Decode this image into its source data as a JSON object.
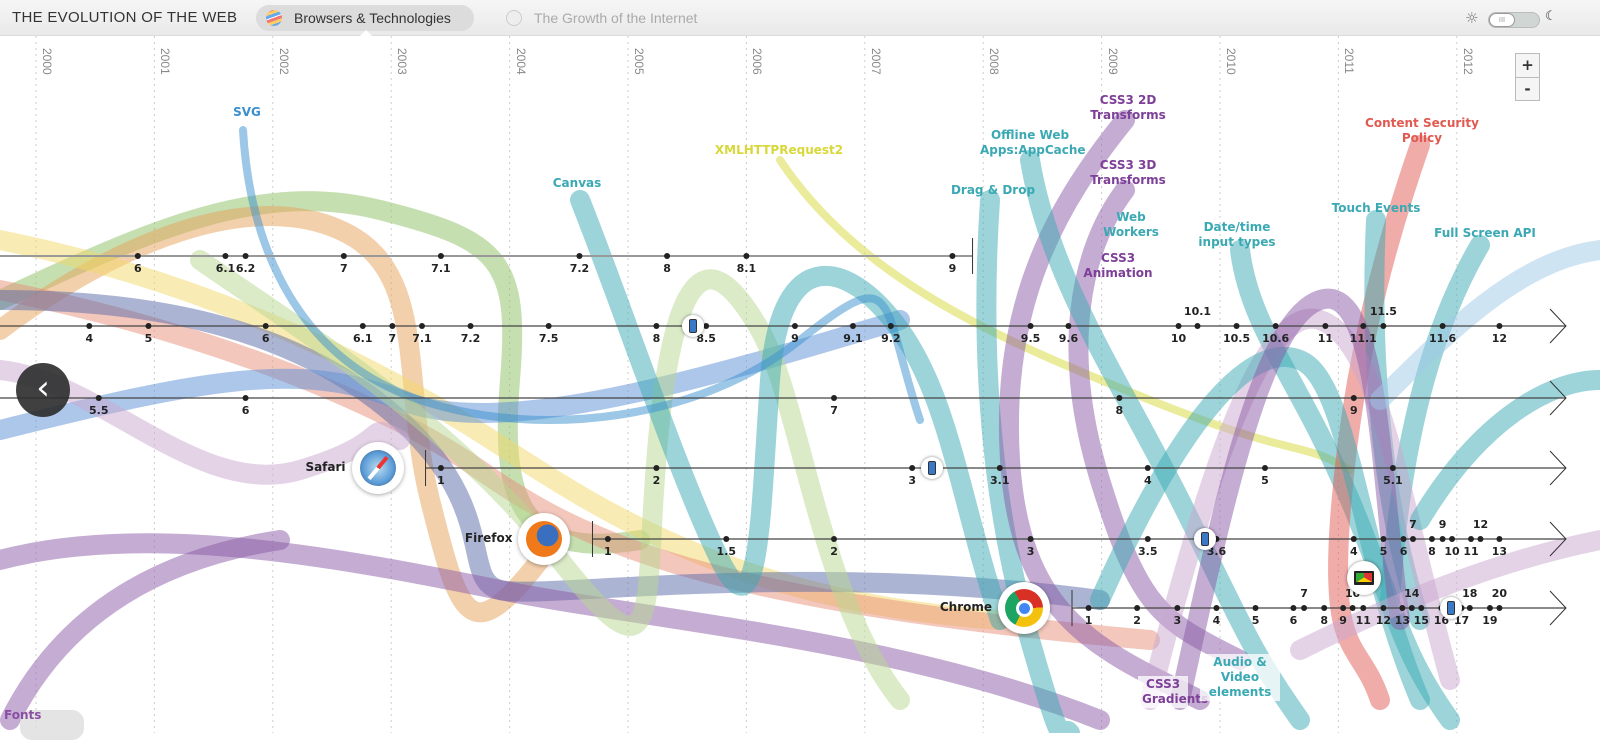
{
  "header": {
    "title": "THE EVOLUTION OF THE WEB",
    "tabs": [
      {
        "label": "Browsers & Technologies",
        "active": true
      },
      {
        "label": "The Growth of the Internet",
        "active": false
      }
    ],
    "theme_toggle": {
      "state": "light",
      "sun_icon": "sun-icon",
      "moon_icon": "moon-icon"
    }
  },
  "zoom": {
    "in": "+",
    "out": "-"
  },
  "back_button": {
    "icon": "chevron-left-icon",
    "glyph": "‹"
  },
  "years": [
    "2000",
    "2001",
    "2002",
    "2003",
    "2004",
    "2005",
    "2006",
    "2007",
    "2008",
    "2009",
    "2010",
    "2011",
    "2012"
  ],
  "browsers": [
    {
      "id": "netscape",
      "name": "",
      "ends": true,
      "versions": [
        [
          "6",
          2000.86
        ],
        [
          "6.1",
          2001.6
        ],
        [
          "6.2",
          2001.77
        ],
        [
          "7",
          2002.6
        ],
        [
          "7.1",
          2003.42
        ],
        [
          "7.2",
          2004.59
        ],
        [
          "8",
          2005.33
        ],
        [
          "8.1",
          2006.0
        ],
        [
          "9",
          2007.74
        ]
      ],
      "end": 2007.91
    },
    {
      "id": "opera",
      "name": "",
      "versions": [
        [
          "4",
          2000.45
        ],
        [
          "5",
          2000.95
        ],
        [
          "6",
          2001.94
        ],
        [
          "6.1",
          2002.76
        ],
        [
          "7",
          2003.01
        ],
        [
          "7.1",
          2003.26
        ],
        [
          "7.2",
          2003.67
        ],
        [
          "7.5",
          2004.33
        ],
        [
          "8",
          2005.24
        ],
        [
          "8.5",
          2005.66
        ],
        [
          "9",
          2006.41
        ],
        [
          "9.1",
          2006.9
        ],
        [
          "9.2",
          2007.22
        ],
        [
          "9.5",
          2008.4
        ],
        [
          "9.6",
          2008.72
        ],
        [
          "10",
          2009.65
        ],
        [
          "10.1",
          2009.81,
          "above"
        ],
        [
          "10.5",
          2010.14
        ],
        [
          "10.6",
          2010.47
        ],
        [
          "11",
          2010.89
        ],
        [
          "11.1",
          2011.21
        ],
        [
          "11.5",
          2011.38,
          "above"
        ],
        [
          "11.6",
          2011.88
        ],
        [
          "12",
          2012.36
        ]
      ],
      "devices": [
        [
          "phone-icon",
          2005.55
        ]
      ]
    },
    {
      "id": "ie",
      "name": "",
      "versions": [
        [
          "5.5",
          2000.53
        ],
        [
          "6",
          2001.77
        ],
        [
          "7",
          2006.74
        ],
        [
          "8",
          2009.15
        ],
        [
          "9",
          2011.13
        ]
      ]
    },
    {
      "id": "safari",
      "name": "Safari",
      "icon": "safari-icon",
      "start": 2003.29,
      "versions": [
        [
          "1",
          2003.42
        ],
        [
          "2",
          2005.24
        ],
        [
          "3",
          2007.4
        ],
        [
          "3.1",
          2008.14
        ],
        [
          "4",
          2009.39
        ],
        [
          "5",
          2010.38
        ],
        [
          "5.1",
          2011.46
        ]
      ],
      "devices": [
        [
          "phone-icon",
          2007.57
        ]
      ]
    },
    {
      "id": "firefox",
      "name": "Firefox",
      "icon": "firefox-icon",
      "start": 2004.7,
      "versions": [
        [
          "1",
          2004.83
        ],
        [
          "1.5",
          2005.83
        ],
        [
          "2",
          2006.74
        ],
        [
          "3",
          2008.4
        ],
        [
          "3.5",
          2009.39
        ],
        [
          "3.6",
          2009.97
        ],
        [
          "4",
          2011.13
        ],
        [
          "5",
          2011.38
        ],
        [
          "6",
          2011.55
        ],
        [
          "7",
          2011.63,
          "above"
        ],
        [
          "8",
          2011.79
        ],
        [
          "9",
          2011.88,
          "above"
        ],
        [
          "10",
          2011.96
        ],
        [
          "11",
          2012.12
        ],
        [
          "12",
          2012.2,
          "above"
        ],
        [
          "13",
          2012.36
        ]
      ],
      "devices": [
        [
          "phone-icon",
          2009.87
        ]
      ]
    },
    {
      "id": "chrome",
      "name": "Chrome",
      "icon": "chrome-icon",
      "start": 2008.75,
      "versions": [
        [
          "1",
          2008.89
        ],
        [
          "2",
          2009.3
        ],
        [
          "3",
          2009.64
        ],
        [
          "4",
          2009.97
        ],
        [
          "5",
          2010.3
        ],
        [
          "6",
          2010.62
        ],
        [
          "7",
          2010.71,
          "above"
        ],
        [
          "8",
          2010.88
        ],
        [
          "9",
          2011.04
        ],
        [
          "10",
          2011.12,
          "above"
        ],
        [
          "11",
          2011.21
        ],
        [
          "12",
          2011.38
        ],
        [
          "13",
          2011.54
        ],
        [
          "14",
          2011.62,
          "above"
        ],
        [
          "15",
          2011.7
        ],
        [
          "16",
          2011.87
        ],
        [
          "17",
          2012.04
        ],
        [
          "18",
          2012.11,
          "above"
        ],
        [
          "19",
          2012.28
        ],
        [
          "20",
          2012.36,
          "above"
        ]
      ],
      "devices": [
        [
          "phone-icon",
          2011.95
        ],
        [
          "laptop-icon",
          2011.22
        ]
      ]
    }
  ],
  "technologies": [
    {
      "label": "SVG",
      "color": "#3a8fce"
    },
    {
      "label": "Canvas",
      "color": "#3aa9b3"
    },
    {
      "label": "XMLHTTPRequest2",
      "color": "#d8d83a"
    },
    {
      "label": "Drag & Drop",
      "color": "#3aa9b3"
    },
    {
      "label": "Offline Web Apps:AppCache",
      "color": "#3aa9b3"
    },
    {
      "label": "CSS3 2D Transforms",
      "color": "#7d3f98"
    },
    {
      "label": "CSS3 3D Transforms",
      "color": "#7d3f98"
    },
    {
      "label": "Web Workers",
      "color": "#3aa9b3"
    },
    {
      "label": "CSS3 Animation",
      "color": "#7d3f98"
    },
    {
      "label": "Date/time input types",
      "color": "#3aa9b3"
    },
    {
      "label": "Touch Events",
      "color": "#3aa9b3"
    },
    {
      "label": "Content Security Policy",
      "color": "#e05a52"
    },
    {
      "label": "Full Screen API",
      "color": "#3aa9b3"
    },
    {
      "label": "CSS3 Gradients",
      "color": "#7d3f98"
    },
    {
      "label": "Audio & Video elements",
      "color": "#3aa9b3"
    },
    {
      "label": "Fonts",
      "color": "#8a4fa3"
    }
  ]
}
